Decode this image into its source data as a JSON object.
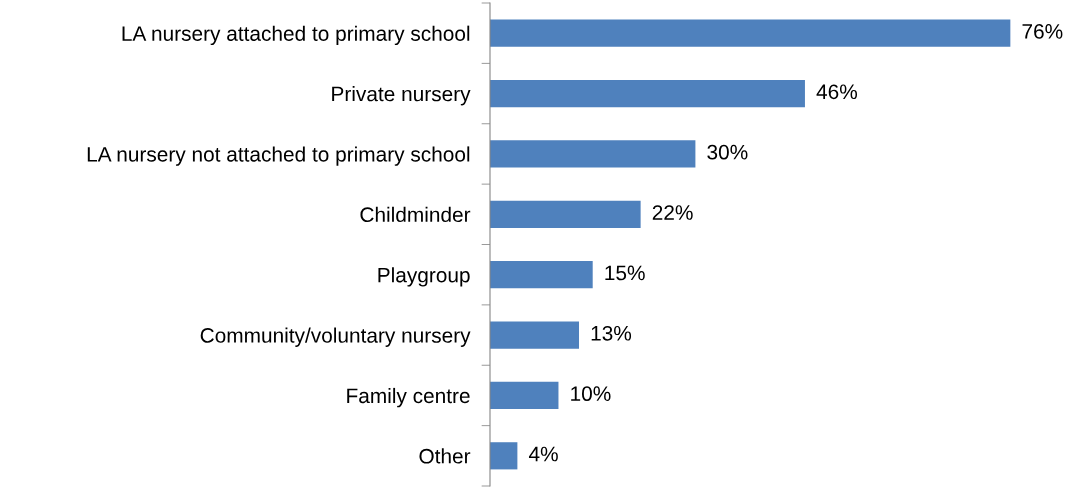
{
  "chart_data": {
    "type": "bar",
    "orientation": "horizontal",
    "categories": [
      "LA nursery attached to primary school",
      "Private nursery",
      "LA nursery not attached to primary school",
      "Childminder",
      "Playgroup",
      "Community/voluntary nursery",
      "Family centre",
      "Other"
    ],
    "values": [
      76,
      46,
      30,
      22,
      15,
      13,
      10,
      4
    ],
    "value_labels": [
      "76%",
      "46%",
      "30%",
      "22%",
      "15%",
      "13%",
      "10%",
      "4%"
    ],
    "color": "#4f81bd"
  }
}
